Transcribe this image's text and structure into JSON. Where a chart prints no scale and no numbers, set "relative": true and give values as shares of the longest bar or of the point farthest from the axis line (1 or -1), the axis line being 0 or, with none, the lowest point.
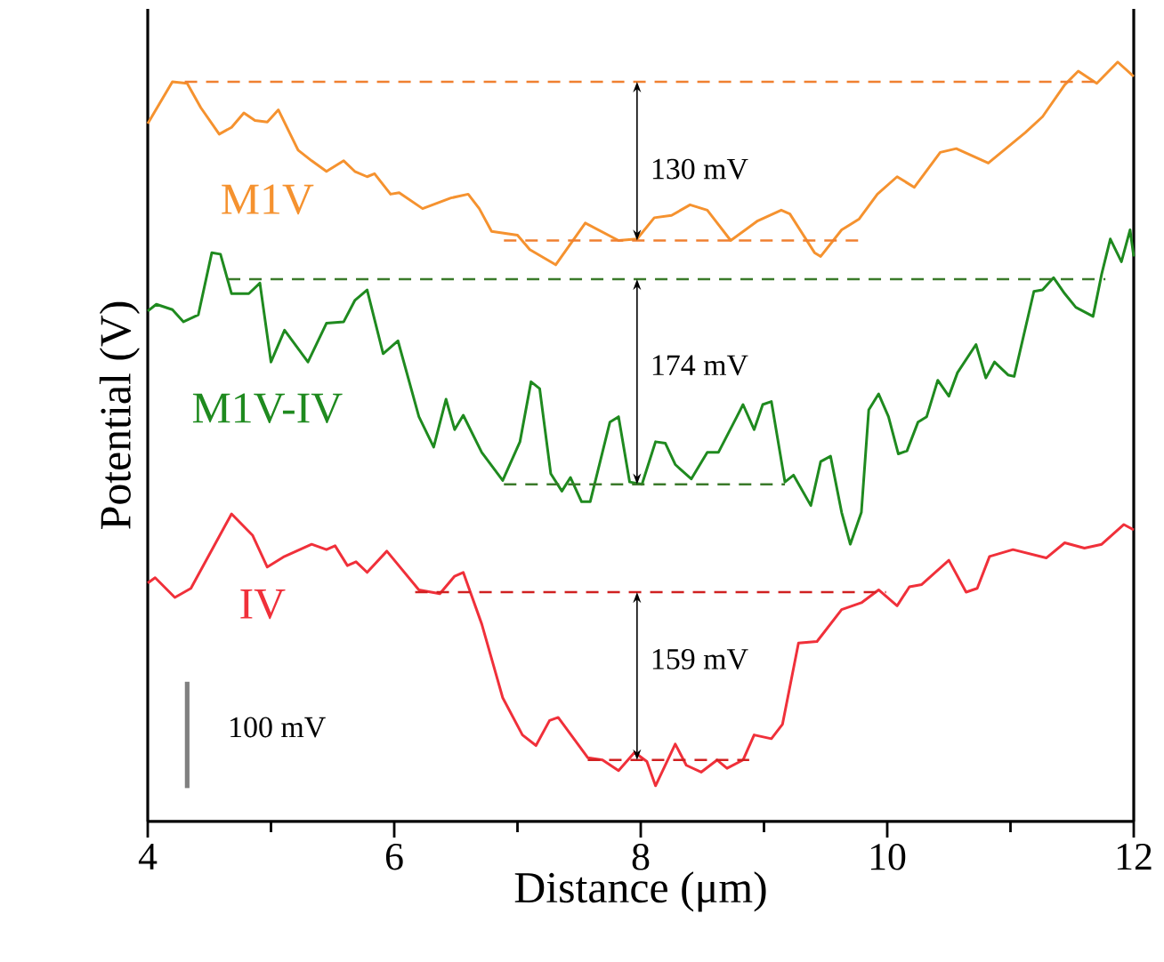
{
  "chart_data": {
    "type": "line",
    "relative": true,
    "xlabel": "Distance (μm)",
    "ylabel": "Potential (V)",
    "xlim": [
      4,
      12
    ],
    "xticks": [
      4,
      6,
      8,
      10,
      12
    ],
    "marker": "none",
    "series": [
      {
        "name": "M1V",
        "color": "#f5922f",
        "x": [
          4.0,
          4.2,
          4.32,
          4.43,
          4.58,
          4.68,
          4.78,
          4.87,
          4.97,
          5.06,
          5.22,
          5.33,
          5.45,
          5.59,
          5.68,
          5.78,
          5.84,
          5.97,
          6.04,
          6.23,
          6.46,
          6.6,
          6.69,
          6.79,
          7.0,
          7.1,
          7.31,
          7.55,
          7.82,
          7.97,
          8.11,
          8.25,
          8.4,
          8.54,
          8.73,
          8.95,
          9.14,
          9.21,
          9.41,
          9.46,
          9.63,
          9.77,
          9.92,
          10.08,
          10.22,
          10.43,
          10.56,
          10.82,
          11.12,
          11.26,
          11.44,
          11.55,
          11.7,
          11.87,
          12.0
        ],
        "values": [
          0.919,
          0.974,
          0.972,
          0.94,
          0.905,
          0.914,
          0.933,
          0.923,
          0.921,
          0.937,
          0.884,
          0.87,
          0.856,
          0.87,
          0.856,
          0.849,
          0.853,
          0.826,
          0.828,
          0.807,
          0.821,
          0.826,
          0.807,
          0.777,
          0.772,
          0.753,
          0.733,
          0.788,
          0.765,
          0.767,
          0.795,
          0.798,
          0.812,
          0.805,
          0.765,
          0.791,
          0.805,
          0.8,
          0.749,
          0.744,
          0.779,
          0.793,
          0.826,
          0.849,
          0.835,
          0.881,
          0.886,
          0.867,
          0.907,
          0.928,
          0.97,
          0.988,
          0.972,
          1.0,
          0.981
        ]
      },
      {
        "name": "M1V-IV",
        "color": "#1f8a1f",
        "x": [
          4.0,
          4.07,
          4.2,
          4.29,
          4.41,
          4.52,
          4.59,
          4.68,
          4.82,
          4.91,
          5.0,
          5.11,
          5.3,
          5.45,
          5.59,
          5.68,
          5.78,
          5.91,
          6.03,
          6.2,
          6.32,
          6.42,
          6.49,
          6.56,
          6.71,
          6.88,
          7.02,
          7.11,
          7.18,
          7.27,
          7.36,
          7.43,
          7.52,
          7.59,
          7.75,
          7.82,
          7.91,
          8.01,
          8.12,
          8.2,
          8.28,
          8.41,
          8.54,
          8.63,
          8.78,
          8.83,
          8.92,
          8.99,
          9.06,
          9.17,
          9.24,
          9.38,
          9.46,
          9.54,
          9.63,
          9.7,
          9.79,
          9.85,
          9.93,
          10.01,
          10.09,
          10.16,
          10.25,
          10.32,
          10.41,
          10.5,
          10.57,
          10.72,
          10.8,
          10.87,
          10.98,
          11.03,
          11.19,
          11.26,
          11.35,
          11.44,
          11.53,
          11.67,
          11.74,
          11.81,
          11.9,
          11.97,
          12.0
        ],
        "values": [
          0.672,
          0.681,
          0.674,
          0.658,
          0.667,
          0.749,
          0.747,
          0.695,
          0.695,
          0.709,
          0.605,
          0.647,
          0.605,
          0.656,
          0.658,
          0.686,
          0.7,
          0.616,
          0.633,
          0.533,
          0.493,
          0.556,
          0.516,
          0.535,
          0.486,
          0.449,
          0.5,
          0.579,
          0.57,
          0.458,
          0.435,
          0.453,
          0.421,
          0.421,
          0.526,
          0.533,
          0.447,
          0.444,
          0.5,
          0.498,
          0.47,
          0.451,
          0.486,
          0.486,
          0.533,
          0.549,
          0.516,
          0.549,
          0.553,
          0.447,
          0.456,
          0.416,
          0.474,
          0.481,
          0.407,
          0.365,
          0.407,
          0.542,
          0.563,
          0.533,
          0.484,
          0.488,
          0.526,
          0.533,
          0.581,
          0.56,
          0.591,
          0.628,
          0.584,
          0.605,
          0.588,
          0.586,
          0.698,
          0.7,
          0.716,
          0.695,
          0.677,
          0.665,
          0.721,
          0.767,
          0.737,
          0.779,
          0.744
        ]
      },
      {
        "name": "IV",
        "color": "#f0303a",
        "x": [
          4.0,
          4.06,
          4.22,
          4.35,
          4.68,
          4.85,
          4.97,
          5.11,
          5.33,
          5.45,
          5.52,
          5.62,
          5.69,
          5.78,
          5.94,
          6.2,
          6.37,
          6.49,
          6.56,
          6.71,
          6.88,
          7.04,
          7.15,
          7.26,
          7.33,
          7.57,
          7.69,
          7.82,
          7.95,
          8.05,
          8.12,
          8.28,
          8.37,
          8.49,
          8.62,
          8.7,
          8.83,
          8.92,
          9.06,
          9.15,
          9.28,
          9.43,
          9.63,
          9.79,
          9.93,
          10.08,
          10.18,
          10.28,
          10.5,
          10.64,
          10.73,
          10.83,
          11.02,
          11.29,
          11.44,
          11.6,
          11.74,
          11.92,
          12.0
        ],
        "values": [
          0.314,
          0.321,
          0.295,
          0.307,
          0.405,
          0.377,
          0.335,
          0.349,
          0.365,
          0.358,
          0.363,
          0.337,
          0.342,
          0.328,
          0.356,
          0.305,
          0.3,
          0.323,
          0.328,
          0.26,
          0.163,
          0.114,
          0.1,
          0.133,
          0.137,
          0.084,
          0.081,
          0.067,
          0.091,
          0.079,
          0.047,
          0.102,
          0.074,
          0.065,
          0.081,
          0.07,
          0.081,
          0.114,
          0.109,
          0.128,
          0.235,
          0.237,
          0.279,
          0.288,
          0.305,
          0.284,
          0.309,
          0.312,
          0.344,
          0.302,
          0.307,
          0.349,
          0.358,
          0.347,
          0.367,
          0.36,
          0.365,
          0.391,
          0.384
        ]
      },
      {
        "type": "line",
        "line_style": "dashed",
        "color": "#f08030",
        "x": [
          4.3,
          11.73
        ],
        "values": [
          0.974,
          0.974
        ]
      },
      {
        "type": "line",
        "line_style": "dashed",
        "color": "#f08030",
        "x": [
          6.89,
          9.79
        ],
        "values": [
          0.765,
          0.765
        ]
      },
      {
        "type": "line",
        "line_style": "dashed",
        "color": "#3a7a2a",
        "x": [
          4.65,
          11.77
        ],
        "values": [
          0.714,
          0.714
        ]
      },
      {
        "type": "line",
        "line_style": "dashed",
        "color": "#3a7a2a",
        "x": [
          6.89,
          9.17
        ],
        "values": [
          0.444,
          0.444
        ]
      },
      {
        "type": "line",
        "line_style": "dashed",
        "color": "#d02020",
        "x": [
          6.17,
          9.99
        ],
        "values": [
          0.302,
          0.302
        ]
      },
      {
        "type": "line",
        "line_style": "dashed",
        "color": "#d02020",
        "x": [
          7.57,
          8.88
        ],
        "values": [
          0.081,
          0.081
        ]
      },
      {
        "type": "line",
        "color": "#808080",
        "x": [
          4.32,
          4.32
        ],
        "values": [
          0.044,
          0.184
        ]
      }
    ],
    "annotations": [
      "130 mV",
      "174 mV",
      "159 mV",
      "100 mV"
    ]
  }
}
